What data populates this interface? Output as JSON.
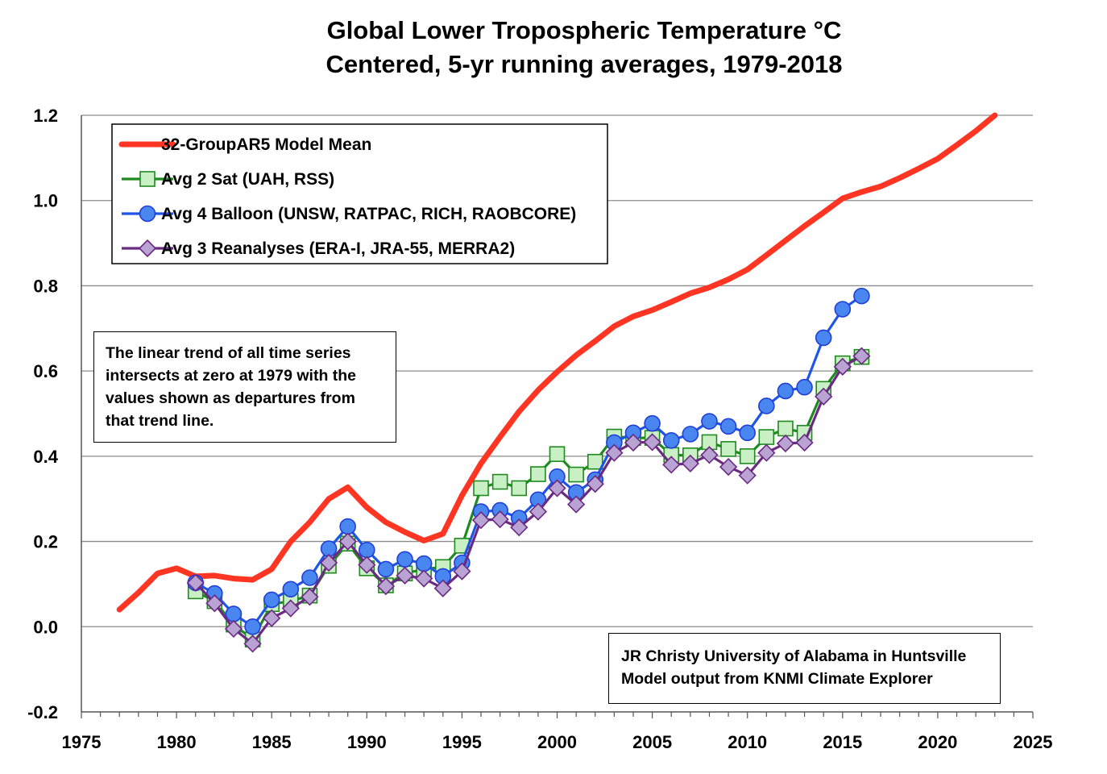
{
  "chart_data": {
    "type": "line",
    "title": "Global Lower Tropospheric Temperature °C",
    "subtitle": "Centered, 5-yr running averages,  1979-2018",
    "xlim": [
      1975,
      2025
    ],
    "ylim": [
      -0.2,
      1.2
    ],
    "x_ticks": [
      "1975",
      "1980",
      "1985",
      "1990",
      "1995",
      "2000",
      "2005",
      "2010",
      "2015",
      "2020",
      "2025"
    ],
    "y_ticks": [
      "-0.2",
      "0.0",
      "0.2",
      "0.4",
      "0.6",
      "0.8",
      "1.0",
      "1.2"
    ],
    "grid": "horizontal",
    "legend_placement": "top-left",
    "series": [
      {
        "name": "32-GroupAR5 Model Mean",
        "color": "#ff3524",
        "marker": "none",
        "x": [
          1977,
          1978,
          1979,
          1980,
          1981,
          1982,
          1983,
          1984,
          1985,
          1986,
          1987,
          1988,
          1989,
          1990,
          1991,
          1992,
          1993,
          1994,
          1995,
          1996,
          1997,
          1998,
          1999,
          2000,
          2001,
          2002,
          2003,
          2004,
          2005,
          2006,
          2007,
          2008,
          2009,
          2010,
          2011,
          2012,
          2013,
          2014,
          2015,
          2016,
          2017,
          2018,
          2019,
          2020,
          2021,
          2022,
          2023
        ],
        "y": [
          0.04,
          0.08,
          0.125,
          0.137,
          0.118,
          0.12,
          0.113,
          0.11,
          0.135,
          0.2,
          0.245,
          0.3,
          0.327,
          0.28,
          0.245,
          0.222,
          0.202,
          0.218,
          0.308,
          0.383,
          0.445,
          0.505,
          0.555,
          0.598,
          0.637,
          0.67,
          0.705,
          0.728,
          0.743,
          0.762,
          0.782,
          0.796,
          0.815,
          0.838,
          0.872,
          0.906,
          0.94,
          0.972,
          1.005,
          1.02,
          1.033,
          1.053,
          1.075,
          1.098,
          1.13,
          1.163,
          1.2
        ]
      },
      {
        "name": "Avg 2 Sat (UAH, RSS)",
        "color": "#1f8a1f",
        "marker": "square",
        "x": [
          1981,
          1982,
          1983,
          1984,
          1985,
          1986,
          1987,
          1988,
          1989,
          1990,
          1991,
          1992,
          1993,
          1994,
          1995,
          1996,
          1997,
          1998,
          1999,
          2000,
          2001,
          2002,
          2003,
          2004,
          2005,
          2006,
          2007,
          2008,
          2009,
          2010,
          2011,
          2012,
          2013,
          2014,
          2015,
          2016
        ],
        "y": [
          0.083,
          0.06,
          0.005,
          -0.03,
          0.053,
          0.06,
          0.073,
          0.143,
          0.195,
          0.137,
          0.097,
          0.125,
          0.135,
          0.14,
          0.19,
          0.325,
          0.34,
          0.325,
          0.358,
          0.405,
          0.357,
          0.387,
          0.446,
          0.443,
          0.443,
          0.403,
          0.402,
          0.433,
          0.417,
          0.4,
          0.445,
          0.465,
          0.455,
          0.558,
          0.618,
          0.633
        ]
      },
      {
        "name": "Avg 4 Balloon (UNSW, RATPAC, RICH, RAOBCORE)",
        "color": "#1f55e6",
        "marker": "circle",
        "x": [
          1981,
          1982,
          1983,
          1984,
          1985,
          1986,
          1987,
          1988,
          1989,
          1990,
          1991,
          1992,
          1993,
          1994,
          1995,
          1996,
          1997,
          1998,
          1999,
          2000,
          2001,
          2002,
          2003,
          2004,
          2005,
          2006,
          2007,
          2008,
          2009,
          2010,
          2011,
          2012,
          2013,
          2014,
          2015,
          2016
        ],
        "y": [
          0.103,
          0.078,
          0.03,
          0.0,
          0.063,
          0.088,
          0.115,
          0.183,
          0.235,
          0.18,
          0.135,
          0.158,
          0.148,
          0.118,
          0.15,
          0.27,
          0.273,
          0.255,
          0.298,
          0.352,
          0.315,
          0.345,
          0.432,
          0.455,
          0.477,
          0.437,
          0.452,
          0.482,
          0.47,
          0.455,
          0.518,
          0.553,
          0.562,
          0.678,
          0.745,
          0.776
        ]
      },
      {
        "name": "Avg 3 Reanalyses (ERA-I, JRA-55, MERRA2)",
        "color": "#6b2a82",
        "marker": "diamond",
        "x": [
          1981,
          1982,
          1983,
          1984,
          1985,
          1986,
          1987,
          1988,
          1989,
          1990,
          1991,
          1992,
          1993,
          1994,
          1995,
          1996,
          1997,
          1998,
          1999,
          2000,
          2001,
          2002,
          2003,
          2004,
          2005,
          2006,
          2007,
          2008,
          2009,
          2010,
          2011,
          2012,
          2013,
          2014,
          2015,
          2016
        ],
        "y": [
          0.103,
          0.055,
          -0.005,
          -0.04,
          0.02,
          0.043,
          0.07,
          0.15,
          0.2,
          0.145,
          0.095,
          0.12,
          0.113,
          0.09,
          0.13,
          0.25,
          0.252,
          0.233,
          0.27,
          0.325,
          0.287,
          0.335,
          0.408,
          0.432,
          0.433,
          0.38,
          0.383,
          0.403,
          0.375,
          0.355,
          0.408,
          0.43,
          0.432,
          0.54,
          0.61,
          0.635
        ]
      }
    ],
    "annotations": [
      [
        "The linear trend of all time series",
        "intersects at zero at 1979 with the",
        "values shown as departures from",
        "that trend line."
      ],
      [
        "JR Christy University of Alabama in Huntsville",
        "Model output from KNMI Climate Explorer"
      ]
    ]
  }
}
